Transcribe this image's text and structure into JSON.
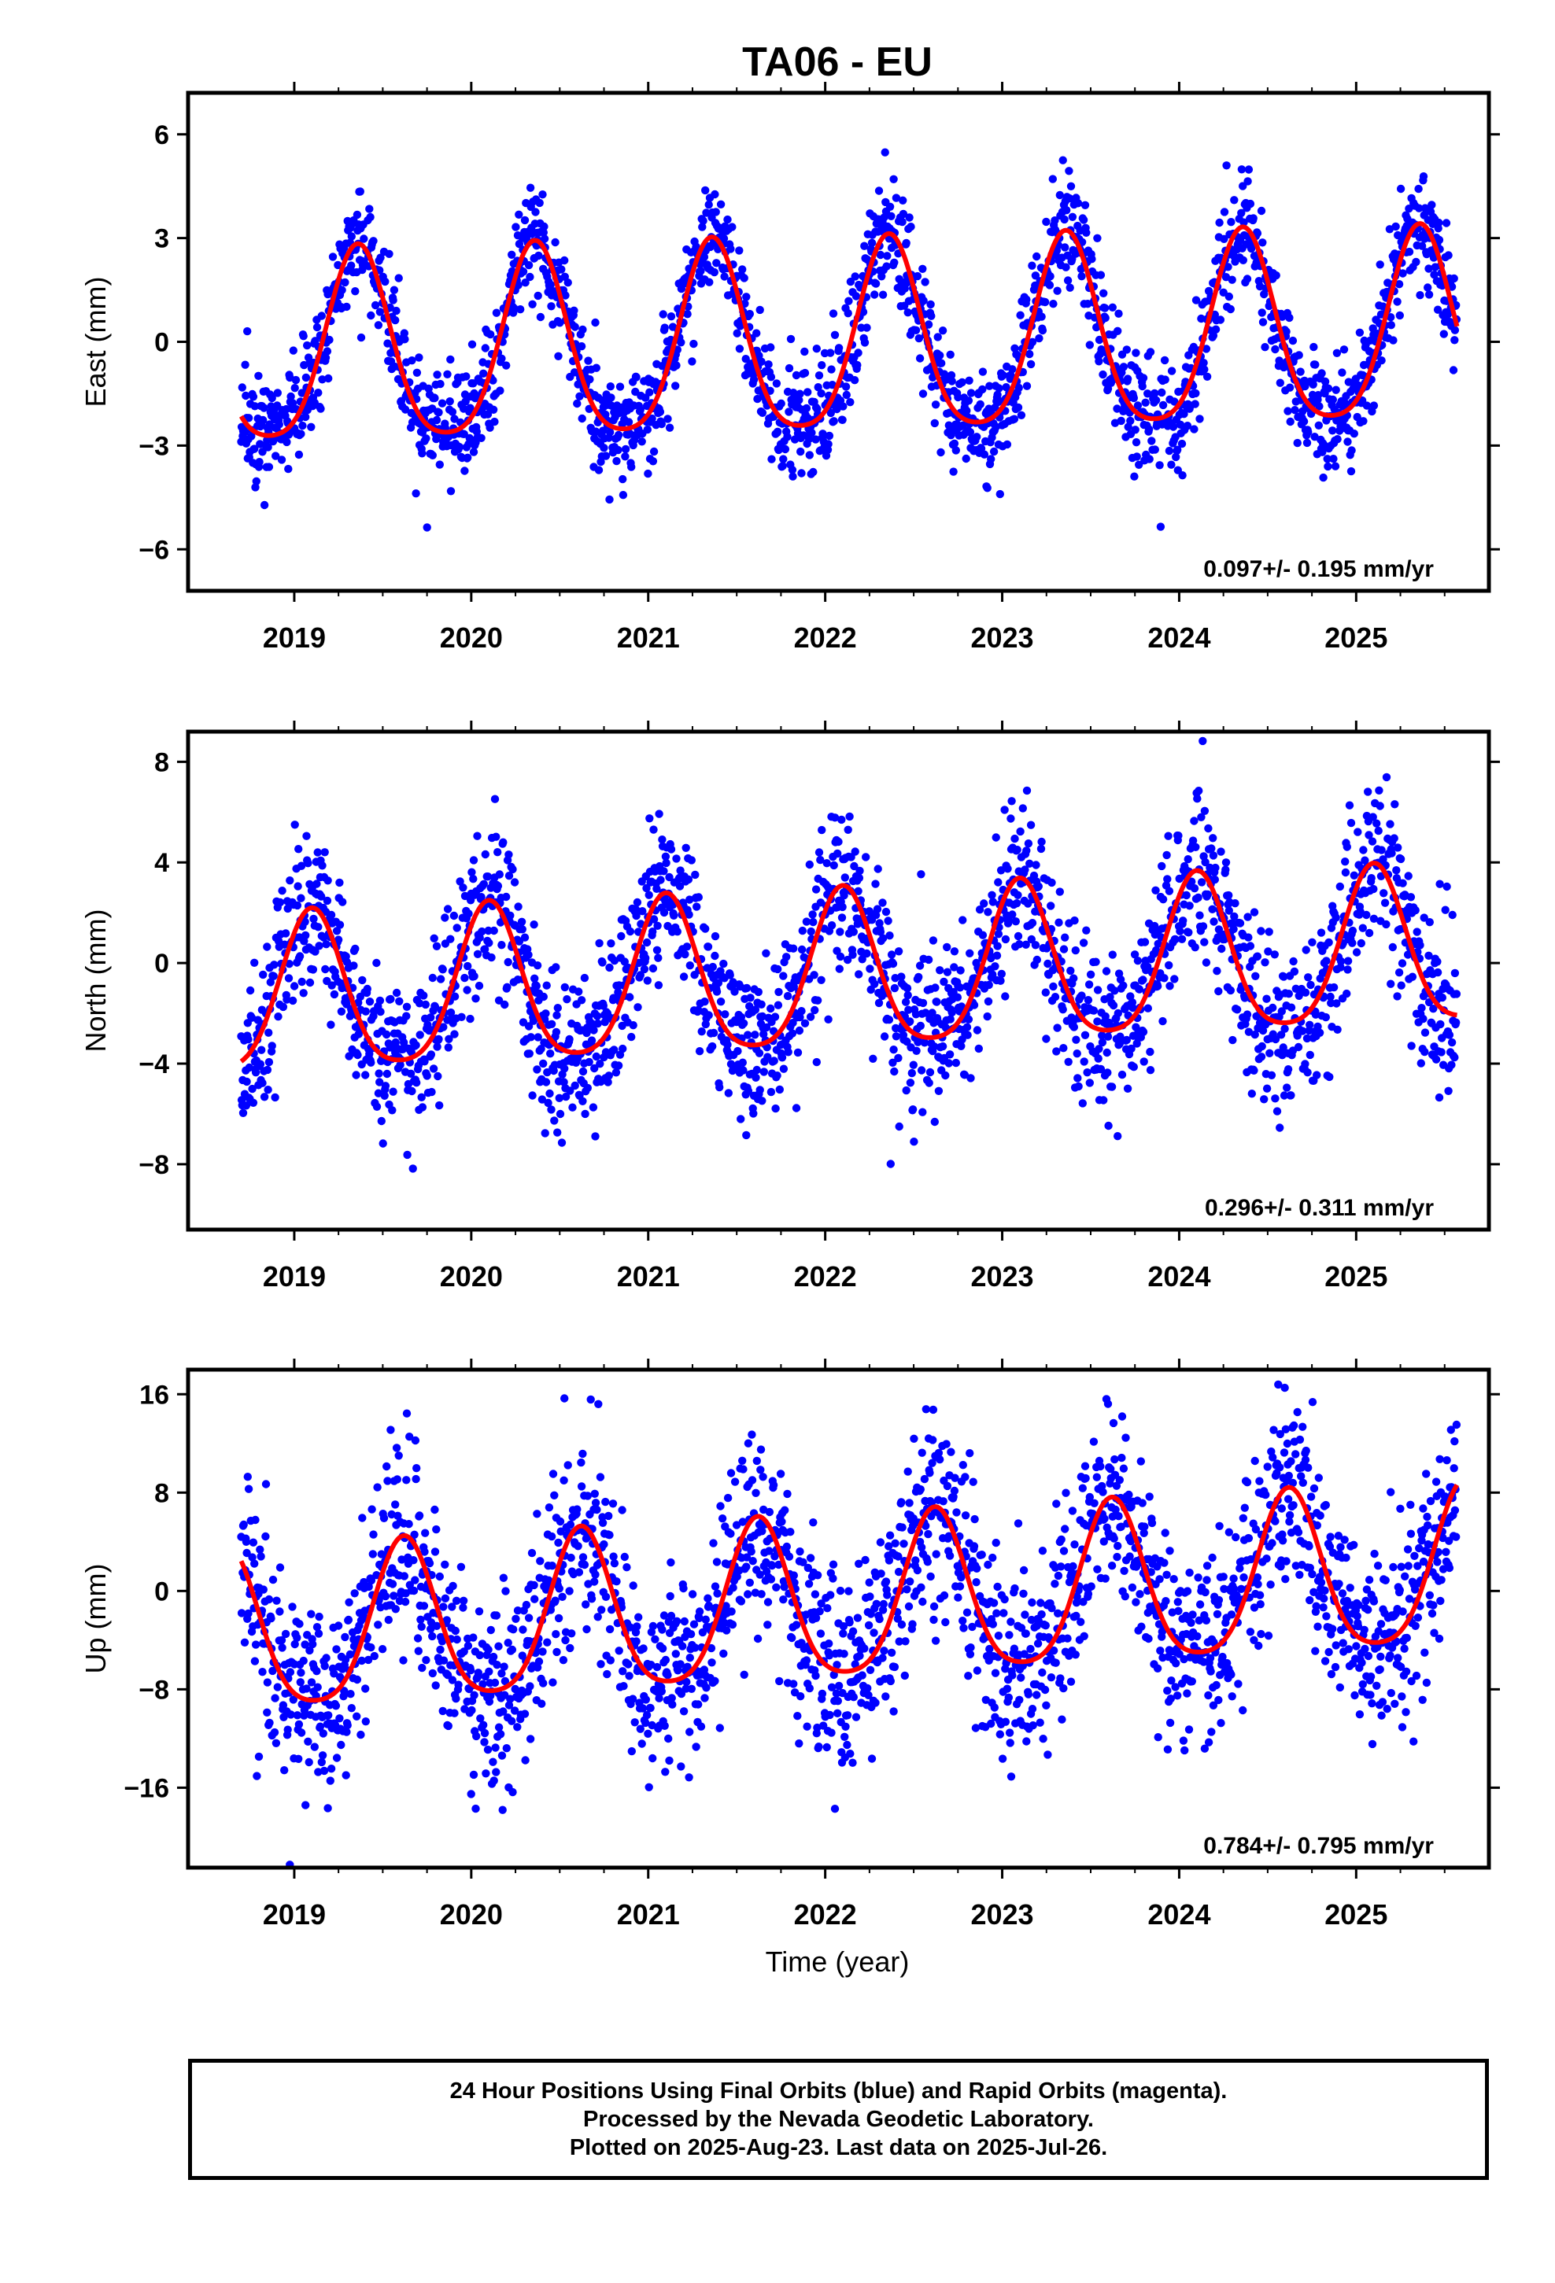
{
  "title": "TA06 - EU",
  "colors": {
    "observations": "#0000ff",
    "model": "#ff0000",
    "frame": "#000000"
  },
  "x_axis": {
    "label": "Time (year)",
    "ticks": [
      2019,
      2020,
      2021,
      2022,
      2023,
      2024,
      2025
    ],
    "range": [
      2018.4,
      2025.75
    ]
  },
  "chart_data": [
    {
      "type": "scatter",
      "ylabel": "East (mm)",
      "yticks": [
        6,
        3,
        0,
        -3,
        -6
      ],
      "ylim": [
        -7.2,
        7.2
      ],
      "xlim": [
        2018.4,
        2025.75
      ],
      "rate_text": "0.097+/- 0.195 mm/yr",
      "data_span": [
        2018.7,
        2025.57
      ],
      "model": {
        "amplitude": 2.75,
        "peak_phase": 0.36,
        "offset": -0.15,
        "trend_mm_per_yr": 0.097,
        "ref_year": 2022.0
      },
      "series": [
        {
          "role": "observations",
          "marker": "dot",
          "scatter_sd": 0.8
        },
        {
          "role": "annual+semiannual fit",
          "marker": "line"
        }
      ]
    },
    {
      "type": "scatter",
      "ylabel": "North (mm)",
      "yticks": [
        8,
        4,
        0,
        -4,
        -8
      ],
      "ylim": [
        -10.6,
        9.2
      ],
      "xlim": [
        2018.4,
        2025.75
      ],
      "rate_text": "0.296+/- 0.311 mm/yr",
      "data_span": [
        2018.7,
        2025.57
      ],
      "model": {
        "amplitude": 3.1,
        "peak_phase": 0.1,
        "offset": -0.6,
        "trend_mm_per_yr": 0.296,
        "ref_year": 2022.0
      },
      "series": [
        {
          "role": "observations",
          "marker": "dot",
          "scatter_sd": 1.6
        },
        {
          "role": "annual+semiannual fit",
          "marker": "line"
        }
      ]
    },
    {
      "type": "scatter",
      "ylabel": "Up (mm)",
      "yticks": [
        16,
        8,
        0,
        -8,
        -16
      ],
      "ylim": [
        -22.5,
        18.0
      ],
      "xlim": [
        2018.4,
        2025.75
      ],
      "rate_text": "0.784+/- 0.795 mm/yr",
      "data_span": [
        2018.7,
        2025.57
      ],
      "model": {
        "amplitude": 6.5,
        "peak_phase": 0.62,
        "offset": -1.3,
        "trend_mm_per_yr": 0.784,
        "ref_year": 2022.0
      },
      "series": [
        {
          "role": "observations",
          "marker": "dot",
          "scatter_sd": 4.0
        },
        {
          "role": "annual+semiannual fit",
          "marker": "line"
        }
      ]
    }
  ],
  "footer": {
    "line1": "24 Hour Positions Using Final Orbits (blue) and Rapid Orbits (magenta).",
    "line2": "Processed by the Nevada Geodetic Laboratory.",
    "line3": "Plotted on 2025-Aug-23. Last data on 2025-Jul-26."
  }
}
